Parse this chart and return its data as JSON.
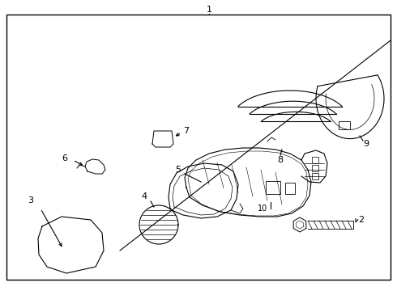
{
  "background_color": "#ffffff",
  "border_color": "#000000",
  "line_color": "#000000",
  "fig_width": 4.9,
  "fig_height": 3.6,
  "dpi": 100,
  "label_fontsize": 8
}
